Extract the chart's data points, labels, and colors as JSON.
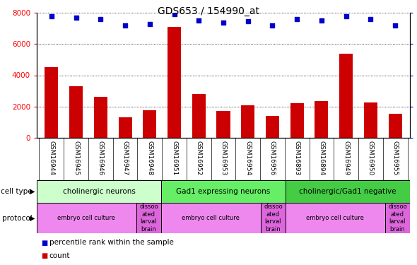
{
  "title": "GDS653 / 154990_at",
  "samples": [
    "GSM16944",
    "GSM16945",
    "GSM16946",
    "GSM16947",
    "GSM16948",
    "GSM16951",
    "GSM16952",
    "GSM16953",
    "GSM16954",
    "GSM16956",
    "GSM16893",
    "GSM16894",
    "GSM16949",
    "GSM16950",
    "GSM16955"
  ],
  "counts": [
    4500,
    3300,
    2600,
    1300,
    1750,
    7100,
    2800,
    1700,
    2100,
    1400,
    2200,
    2350,
    5400,
    2250,
    1550
  ],
  "percentiles": [
    97,
    96,
    95,
    90,
    91,
    99,
    94,
    92,
    93,
    90,
    95,
    94,
    97,
    95,
    90
  ],
  "bar_color": "#cc0000",
  "dot_color": "#0000cc",
  "ylim_left": [
    0,
    8000
  ],
  "ylim_right": [
    0,
    100
  ],
  "yticks_left": [
    0,
    2000,
    4000,
    6000,
    8000
  ],
  "yticks_right": [
    0,
    25,
    50,
    75,
    100
  ],
  "cell_type_groups": [
    {
      "label": "cholinergic neurons",
      "start": 0,
      "end": 5,
      "color": "#ccffcc"
    },
    {
      "label": "Gad1 expressing neurons",
      "start": 5,
      "end": 10,
      "color": "#66ee66"
    },
    {
      "label": "cholinergic/Gad1 negative",
      "start": 10,
      "end": 15,
      "color": "#44cc44"
    }
  ],
  "protocol_groups": [
    {
      "label": "embryo cell culture",
      "start": 0,
      "end": 4,
      "color": "#ee88ee"
    },
    {
      "label": "dissoo\nated\nlarval\nbrain",
      "start": 4,
      "end": 5,
      "color": "#dd66dd"
    },
    {
      "label": "embryo cell culture",
      "start": 5,
      "end": 9,
      "color": "#ee88ee"
    },
    {
      "label": "dissoo\nated\nlarval\nbrain",
      "start": 9,
      "end": 10,
      "color": "#dd66dd"
    },
    {
      "label": "embryo cell culture",
      "start": 10,
      "end": 14,
      "color": "#ee88ee"
    },
    {
      "label": "dissoo\nated\nlarval\nbrain",
      "start": 14,
      "end": 15,
      "color": "#dd66dd"
    }
  ],
  "cell_type_row_label": "cell type",
  "protocol_row_label": "protocol",
  "legend_count_label": "count",
  "legend_pct_label": "percentile rank within the sample",
  "background_color": "#ffffff",
  "xticklabel_bg": "#cccccc"
}
